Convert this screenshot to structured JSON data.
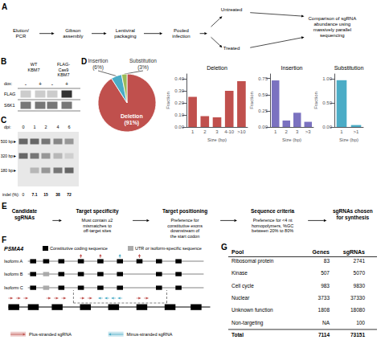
{
  "chart_data": [
    {
      "type": "workflow",
      "title": "A",
      "annotations": [
        "Elution/\nPCR",
        "Gibson\nassembly",
        "Lentiviral\npackaging",
        "Pooled\ninfection",
        "Untreated",
        "Treated",
        "Comparison of sgRNA\nabundance using\nmassively parallel\nsequencing"
      ]
    },
    {
      "type": "blot",
      "title": "B",
      "annotations": [
        "WT\nKBM7",
        "FLAG-\nCas9\nKBM7",
        "dox:"
      ],
      "categories": [
        "-",
        "+",
        "-",
        "+"
      ],
      "series": [
        {
          "name": "FLAG",
          "colors": [
            "#cccccc",
            "#cccccc",
            "#cccccc",
            "#333333"
          ]
        },
        {
          "name": "S6K1",
          "colors": [
            "#777777",
            "#777777",
            "#777777",
            "#777777"
          ]
        }
      ]
    },
    {
      "type": "gel",
      "title": "C",
      "annotations": [
        "dpi:",
        "indel (%):"
      ],
      "categories": [
        "0",
        "1",
        "2",
        "4",
        "6"
      ],
      "series": [
        {
          "name": "500 bp►",
          "values": [
            0.8,
            0.8,
            0.7,
            0.6,
            0.5
          ]
        },
        {
          "name": "320 bp►",
          "values": [
            0.8,
            0.7,
            0.5,
            0.3,
            0.15
          ]
        },
        {
          "name": "180 bp►",
          "values": [
            0.0,
            0.3,
            0.5,
            0.7,
            0.8
          ]
        }
      ],
      "values": [
        0,
        7.1,
        15,
        38,
        72
      ]
    },
    {
      "type": "pie",
      "title": "D",
      "categories": [
        "Deletion",
        "Insertion",
        "Substitution"
      ],
      "values": [
        91,
        6,
        3
      ],
      "value_labels": [
        "(91%)",
        "(6%)",
        "(3%)"
      ],
      "colors": [
        "#c0504d",
        "#4bacc6",
        "#9bbb59"
      ]
    },
    {
      "type": "bar",
      "title": "Deletion",
      "xlabel": "Size (bp)",
      "ylabel": "Fraction",
      "categories": [
        "1",
        "2",
        "3",
        "4-10",
        ">10"
      ],
      "values": [
        0.25,
        0.09,
        0.08,
        0.3,
        0.38
      ],
      "color": "#c0504d",
      "ylim": [
        0,
        0.44
      ],
      "yticks": [
        {
          "value": 0,
          "label": "0.00"
        },
        {
          "value": 0.1,
          "label": "0.10"
        },
        {
          "value": 0.2,
          "label": "0.20"
        },
        {
          "value": 0.3,
          "label": "0.30"
        },
        {
          "value": 0.4,
          "label": "0.40"
        }
      ],
      "grid": false
    },
    {
      "type": "bar",
      "title": "Insertion",
      "xlabel": "Size (bp)",
      "ylabel": "Fraction",
      "categories": [
        "1",
        "2",
        "3",
        ">3"
      ],
      "values": [
        0.72,
        0.1,
        0.22,
        0.08
      ],
      "color": "#7b72c0",
      "ylim": [
        0,
        0.82
      ],
      "yticks": [
        {
          "value": 0,
          "label": "0.00"
        },
        {
          "value": 0.25,
          "label": "0.25"
        },
        {
          "value": 0.5,
          "label": "0.50"
        },
        {
          "value": 0.75,
          "label": "0.75"
        }
      ],
      "grid": false
    },
    {
      "type": "bar",
      "title": "Substitution",
      "xlabel": "Size (bp)",
      "ylabel": "Fraction",
      "categories": [
        "1",
        ">1"
      ],
      "values": [
        0.97,
        0.04
      ],
      "color": "#4bacc6",
      "ylim": [
        0,
        1.1
      ],
      "yticks": [
        {
          "value": 0,
          "label": "0.00"
        },
        {
          "value": 0.5,
          "label": "0.50"
        },
        {
          "value": 1,
          "label": "1.00"
        }
      ],
      "grid": false
    },
    {
      "type": "pipeline",
      "title": "E",
      "categories": [
        "Candidate\nsgRNAs",
        "Target specificity",
        "Target positioning",
        "Sequence criteria",
        "sgRNAs chosen\nfor synthesis"
      ],
      "annotations": [
        "Must contain ≥2\nmismatches to\noff-target sites",
        "Preference for\nconstitutive exons\ndownstream of\nthe start codon",
        "Preference for <4 nt\nhomopolymers, %GC\nbetween 20% to 80%"
      ]
    },
    {
      "type": "gene",
      "title": "F",
      "subtitle": "PSMA4",
      "annotations": [
        {
          "text": "Constitutive coding sequence",
          "color": "#000000"
        },
        {
          "text": "UTR or isoform-specific sequence",
          "color": "#aaaaaa"
        },
        {
          "text": "Plus-stranded sgRNA",
          "color": "#c0504d"
        },
        {
          "text": "Minus-stranded sgRNA",
          "color": "#4bacc6"
        }
      ],
      "series": [
        {
          "name": "Isoform A",
          "colors": [
            "#000000",
            "#000000",
            "#000000",
            "#000000",
            "#000000",
            "#000000",
            "#000000",
            "#000000",
            "#000000"
          ]
        },
        {
          "name": "Isoform B",
          "colors": [
            "#000000",
            "#aaaaaa",
            "#000000",
            "#000000",
            "#000000",
            "#000000",
            "#000000",
            "#000000"
          ]
        },
        {
          "name": "Isoform C",
          "colors": [
            "#000000",
            "#aaaaaa",
            "#000000",
            "#000000",
            "#000000",
            "#000000",
            "#000000",
            "#000000"
          ]
        }
      ]
    },
    {
      "type": "table",
      "title": "G",
      "columns": [
        "Pool",
        "Genes",
        "sgRNAs"
      ],
      "rows": [
        [
          "Ribosomal protein",
          "83",
          "2741"
        ],
        [
          "Kinase",
          "507",
          "5070"
        ],
        [
          "Cell cycle",
          "983",
          "9830"
        ],
        [
          "Nuclear",
          "3733",
          "37330"
        ],
        [
          "Unknown function",
          "1808",
          "18080"
        ],
        [
          "Non-targeting",
          "NA",
          "100"
        ],
        [
          "Total",
          "7114",
          "73151"
        ]
      ]
    }
  ]
}
